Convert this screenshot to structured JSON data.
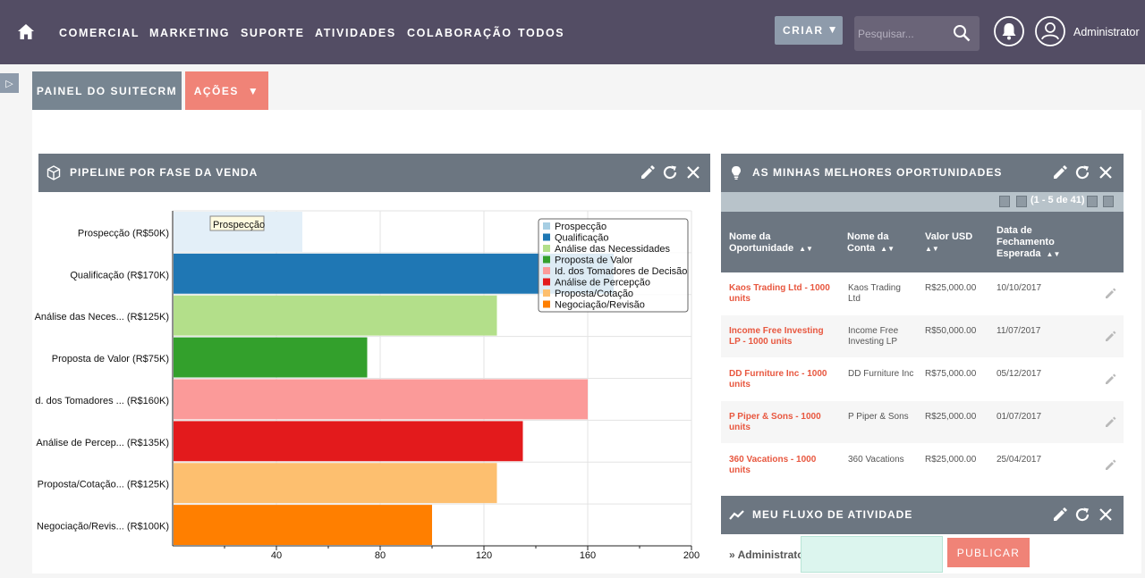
{
  "nav": {
    "items": [
      "COMERCIAL",
      "MARKETING",
      "SUPORTE",
      "ATIVIDADES",
      "COLABORAÇÃO",
      "TODOS"
    ],
    "create_label": "CRIAR",
    "search_placeholder": "Pesquisar...",
    "user_name": "Administrator"
  },
  "tabs": {
    "dashboard_label": "PAINEL DO SUITECRM",
    "actions_label": "AÇÕES"
  },
  "pipeline": {
    "title": "PIPELINE POR FASE DA VENDA",
    "tooltip": "Prospecção"
  },
  "chart_data": {
    "type": "bar",
    "orientation": "horizontal",
    "categories": [
      "Prospecção (R$50K)",
      "Qualificação (R$170K)",
      "Análise das Neces... (R$125K)",
      "Proposta de Valor (R$75K)",
      "d. dos Tomadores ... (R$160K)",
      "Análise de Percep... (R$135K)",
      "Proposta/Cotação... (R$125K)",
      "Negociação/Revis... (R$100K)"
    ],
    "values": [
      50,
      170,
      125,
      75,
      160,
      135,
      125,
      100
    ],
    "colors": [
      "#e3eff8",
      "#1f77b4",
      "#b3df8a",
      "#33a02c",
      "#fb9a99",
      "#e31a1c",
      "#fdbf6f",
      "#ff7f00"
    ],
    "xlim": [
      0,
      200
    ],
    "xticks": [
      40,
      80,
      120,
      160,
      200
    ],
    "legend": [
      {
        "label": "Prospecção",
        "color": "#a6cee3"
      },
      {
        "label": "Qualificação",
        "color": "#1f78b4"
      },
      {
        "label": "Análise das Necessidades",
        "color": "#b2df8a"
      },
      {
        "label": "Proposta de Valor",
        "color": "#33a02c"
      },
      {
        "label": "Id. dos Tomadores de Decisão",
        "color": "#fb9a99"
      },
      {
        "label": "Análise de Percepção",
        "color": "#e31a1c"
      },
      {
        "label": "Proposta/Cotação",
        "color": "#fdbf6f"
      },
      {
        "label": "Negociação/Revisão",
        "color": "#ff7f00"
      }
    ],
    "legend_position": "top-right",
    "grid": true
  },
  "opportunities": {
    "title": "AS MINHAS MELHORES OPORTUNIDADES",
    "pager_text": "(1 - 5 de 41)",
    "columns": [
      "Nome da Oportunidade",
      "Nome da Conta",
      "Valor USD",
      "Data de Fechamento Esperada"
    ],
    "rows": [
      {
        "name": "Kaos Trading Ltd - 1000 units",
        "account": "Kaos Trading Ltd",
        "value": "R$25,000.00",
        "date": "10/10/2017"
      },
      {
        "name": "Income Free Investing LP - 1000 units",
        "account": "Income Free Investing LP",
        "value": "R$50,000.00",
        "date": "11/07/2017"
      },
      {
        "name": "DD Furniture Inc - 1000 units",
        "account": "DD Furniture Inc",
        "value": "R$75,000.00",
        "date": "05/12/2017"
      },
      {
        "name": "P Piper & Sons - 1000 units",
        "account": "P Piper & Sons",
        "value": "R$25,000.00",
        "date": "01/07/2017"
      },
      {
        "name": "360 Vacations - 1000 units",
        "account": "360 Vacations",
        "value": "R$25,000.00",
        "date": "25/04/2017"
      }
    ]
  },
  "activity": {
    "title": "MEU FLUXO DE ATIVIDADE",
    "user": "Administrator",
    "publish_label": "PUBLICAR"
  }
}
